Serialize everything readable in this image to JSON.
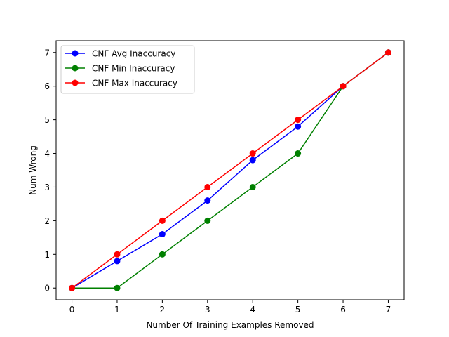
{
  "chart_data": {
    "type": "line",
    "title": "",
    "xlabel": "Number Of Training Examples Removed",
    "ylabel": "Num Wrong",
    "x": [
      0,
      1,
      2,
      3,
      4,
      5,
      6,
      7
    ],
    "xlim": [
      -0.35,
      7.35
    ],
    "ylim": [
      -0.35,
      7.35
    ],
    "xticks": [
      0,
      1,
      2,
      3,
      4,
      5,
      6,
      7
    ],
    "yticks": [
      0,
      1,
      2,
      3,
      4,
      5,
      6,
      7
    ],
    "grid": false,
    "legend_position": "upper-left",
    "series": [
      {
        "name": "CNF Avg Inaccuracy",
        "color": "#0000ff",
        "marker": "circle",
        "values": [
          0,
          0.8,
          1.6,
          2.6,
          3.8,
          4.8,
          6,
          7
        ]
      },
      {
        "name": "CNF Min Inaccuracy",
        "color": "#008000",
        "marker": "circle",
        "values": [
          0,
          0,
          1,
          2,
          3,
          4,
          6,
          7
        ]
      },
      {
        "name": "CNF Max Inaccuracy",
        "color": "#ff0000",
        "marker": "circle",
        "values": [
          0,
          1,
          2,
          3,
          4,
          5,
          6,
          7
        ]
      }
    ]
  }
}
